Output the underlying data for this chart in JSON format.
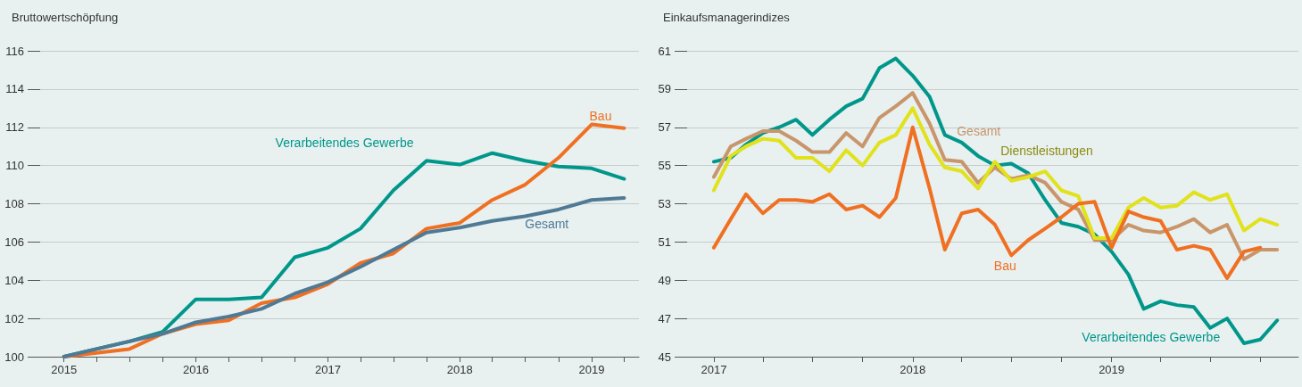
{
  "chart_data": [
    {
      "type": "line",
      "title": "Bruttowertschöpfung",
      "x": [
        "2015-01",
        "2015-04",
        "2015-07",
        "2015-10",
        "2016-01",
        "2016-04",
        "2016-07",
        "2016-10",
        "2017-01",
        "2017-04",
        "2017-07",
        "2017-10",
        "2018-01",
        "2018-04",
        "2018-07",
        "2018-10",
        "2019-01",
        "2019-04"
      ],
      "series": [
        {
          "name": "Verarbeitendes Gewerbe",
          "color": "#00978a",
          "values": [
            100,
            100.4,
            100.8,
            101.3,
            103.0,
            103.0,
            103.1,
            105.2,
            105.7,
            106.7,
            108.7,
            110.25,
            110.05,
            110.65,
            110.25,
            109.95,
            109.85,
            109.3
          ]
        },
        {
          "name": "Bau",
          "color": "#f07022",
          "values": [
            100,
            100.2,
            100.4,
            101.2,
            101.7,
            101.9,
            102.8,
            103.1,
            103.8,
            104.9,
            105.4,
            106.7,
            107.0,
            108.2,
            109.0,
            110.4,
            112.15,
            111.95
          ]
        },
        {
          "name": "Gesamt",
          "color": "#4f7a96",
          "values": [
            100,
            100.4,
            100.8,
            101.2,
            101.8,
            102.1,
            102.5,
            103.3,
            103.9,
            104.7,
            105.6,
            106.5,
            106.75,
            107.1,
            107.35,
            107.7,
            108.2,
            108.3
          ]
        }
      ],
      "xlim": [
        "2014-10-27",
        "2019-05-12"
      ],
      "xticks": [
        {
          "value": "2015-01",
          "label": "2015"
        },
        {
          "value": "2015-04",
          "label": null
        },
        {
          "value": "2015-07",
          "label": null
        },
        {
          "value": "2015-10",
          "label": null
        },
        {
          "value": "2016-01",
          "label": "2016"
        },
        {
          "value": "2016-04",
          "label": null
        },
        {
          "value": "2016-07",
          "label": null
        },
        {
          "value": "2016-10",
          "label": null
        },
        {
          "value": "2017-01",
          "label": "2017"
        },
        {
          "value": "2017-04",
          "label": null
        },
        {
          "value": "2017-07",
          "label": null
        },
        {
          "value": "2017-10",
          "label": null
        },
        {
          "value": "2018-01",
          "label": "2018"
        },
        {
          "value": "2018-04",
          "label": null
        },
        {
          "value": "2018-07",
          "label": null
        },
        {
          "value": "2018-10",
          "label": null
        },
        {
          "value": "2019-01",
          "label": "2019"
        },
        {
          "value": "2019-04",
          "label": null
        }
      ],
      "ylim": [
        100,
        116
      ],
      "yticks": [
        100,
        102,
        104,
        106,
        108,
        110,
        112,
        114,
        116
      ],
      "grid": "y",
      "legend": false,
      "marker": "none",
      "line_style": "solid"
    },
    {
      "type": "line",
      "title": "Einkaufsmanagerindizes",
      "x": [
        "2017-01",
        "2017-02",
        "2017-03",
        "2017-04",
        "2017-05",
        "2017-06",
        "2017-07",
        "2017-08",
        "2017-09",
        "2017-10",
        "2017-11",
        "2017-12",
        "2018-01",
        "2018-02",
        "2018-03",
        "2018-04",
        "2018-05",
        "2018-06",
        "2018-07",
        "2018-08",
        "2018-09",
        "2018-10",
        "2018-11",
        "2018-12",
        "2019-01",
        "2019-02",
        "2019-03",
        "2019-04",
        "2019-05",
        "2019-06",
        "2019-07",
        "2019-08",
        "2019-09",
        "2019-10",
        "2019-11"
      ],
      "series": [
        {
          "name": "Verarbeitendes Gewerbe",
          "color": "#00978a",
          "values": [
            55.2,
            55.4,
            56.1,
            56.7,
            57.0,
            57.4,
            56.6,
            57.4,
            58.1,
            58.5,
            60.1,
            60.6,
            59.7,
            58.6,
            56.6,
            56.2,
            55.5,
            55.0,
            55.1,
            54.6,
            53.2,
            52.0,
            51.8,
            51.4,
            50.5,
            49.3,
            47.5,
            47.9,
            47.7,
            47.6,
            46.5,
            47.0,
            45.7,
            45.9,
            46.9
          ]
        },
        {
          "name": "Gesamt",
          "color": "#c9956a",
          "values": [
            54.4,
            56.0,
            56.4,
            56.8,
            56.8,
            56.3,
            55.7,
            55.7,
            56.7,
            56.0,
            57.5,
            58.1,
            58.8,
            57.2,
            55.3,
            55.2,
            54.1,
            54.9,
            54.3,
            54.5,
            54.1,
            53.1,
            52.7,
            51.1,
            51.1,
            51.9,
            51.6,
            51.5,
            51.8,
            52.2,
            51.5,
            51.9,
            50.1,
            50.6,
            50.6
          ]
        },
        {
          "name": "Dienstleistungen",
          "color": "#e1e21a",
          "values": [
            53.7,
            55.5,
            56.0,
            56.4,
            56.3,
            55.4,
            55.4,
            54.7,
            55.8,
            55.0,
            56.2,
            56.6,
            58.0,
            56.1,
            54.9,
            54.7,
            53.8,
            55.2,
            54.2,
            54.4,
            54.7,
            53.7,
            53.4,
            51.2,
            51.2,
            52.8,
            53.3,
            52.8,
            52.9,
            53.6,
            53.2,
            53.5,
            51.6,
            52.2,
            51.9
          ]
        },
        {
          "name": "Bau",
          "color": "#f07022",
          "values": [
            50.7,
            52.2,
            53.5,
            52.5,
            53.2,
            53.2,
            53.1,
            53.5,
            52.7,
            52.9,
            52.3,
            53.3,
            57.0,
            53.8,
            50.6,
            52.5,
            52.7,
            51.9,
            50.3,
            51.1,
            51.7,
            52.3,
            53.0,
            53.1,
            50.7,
            52.6,
            52.3,
            52.1,
            50.6,
            50.8,
            50.6,
            49.1,
            50.5,
            50.7,
            null
          ]
        }
      ],
      "xlim": [
        "2016-11-13",
        "2019-12-10"
      ],
      "xticks": [
        {
          "value": "2017-01",
          "label": "2017"
        },
        {
          "value": "2017-04",
          "label": null
        },
        {
          "value": "2017-07",
          "label": null
        },
        {
          "value": "2017-10",
          "label": null
        },
        {
          "value": "2018-01",
          "label": "2018"
        },
        {
          "value": "2018-04",
          "label": null
        },
        {
          "value": "2018-07",
          "label": null
        },
        {
          "value": "2018-10",
          "label": null
        },
        {
          "value": "2019-01",
          "label": "2019"
        },
        {
          "value": "2019-04",
          "label": null
        },
        {
          "value": "2019-07",
          "label": null
        },
        {
          "value": "2019-10",
          "label": null
        }
      ],
      "ylim": [
        45,
        61
      ],
      "yticks": [
        45,
        47,
        49,
        51,
        53,
        55,
        57,
        59,
        61
      ],
      "grid": "y",
      "legend": false,
      "marker": "none",
      "line_style": "solid"
    }
  ]
}
